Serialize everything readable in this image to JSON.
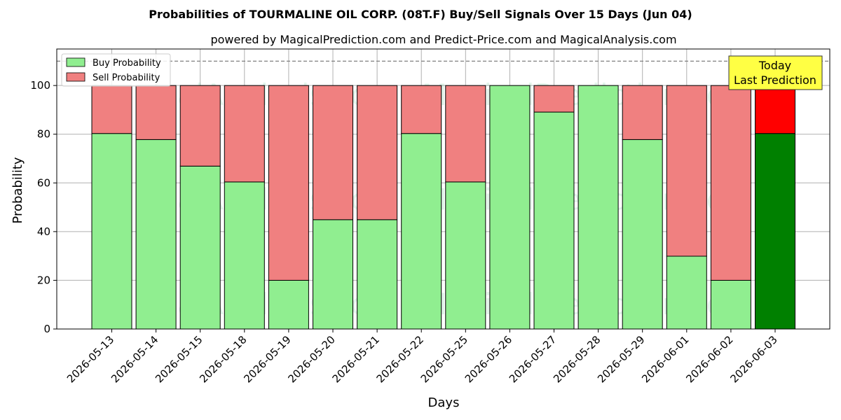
{
  "chart_data": {
    "type": "bar",
    "stacked": true,
    "title": "Probabilities of TOURMALINE OIL CORP. (08T.F) Buy/Sell Signals Over 15 Days (Jun 04)",
    "subtitle": "powered by MagicalPrediction.com and Predict-Price.com and MagicalAnalysis.com",
    "xlabel": "Days",
    "ylabel": "Probability",
    "ylim": [
      0,
      115
    ],
    "yticks": [
      0,
      20,
      40,
      60,
      80,
      100
    ],
    "reference_line": 110,
    "grid": true,
    "legend_position": "top-left",
    "categories": [
      "2026-05-13",
      "2026-05-14",
      "2026-05-15",
      "2026-05-18",
      "2026-05-19",
      "2026-05-20",
      "2026-05-21",
      "2026-05-22",
      "2026-05-25",
      "2026-05-26",
      "2026-05-27",
      "2026-05-28",
      "2026-05-29",
      "2026-06-01",
      "2026-06-02",
      "2026-06-03"
    ],
    "series": [
      {
        "name": "Buy Probability",
        "color": "#90ee90",
        "values": [
          80.3,
          77.8,
          66.9,
          60.4,
          20,
          44.9,
          44.9,
          80.3,
          60.4,
          100,
          89.1,
          100,
          77.8,
          29.9,
          20,
          80.3
        ]
      },
      {
        "name": "Sell Probability",
        "color": "#f08080",
        "values": [
          19.7,
          22.2,
          33.1,
          39.6,
          80,
          55.1,
          55.1,
          19.7,
          39.6,
          0,
          10.9,
          0,
          22.2,
          70.1,
          80,
          19.7
        ]
      }
    ],
    "highlight": {
      "index": 15,
      "buy_color": "#008000",
      "sell_color": "#ff0000",
      "label_line1": "Today",
      "label_line2": "Last Prediction"
    },
    "watermarks": [
      "MagicalAnalysis.com",
      "MagicalPrediction.com"
    ]
  }
}
